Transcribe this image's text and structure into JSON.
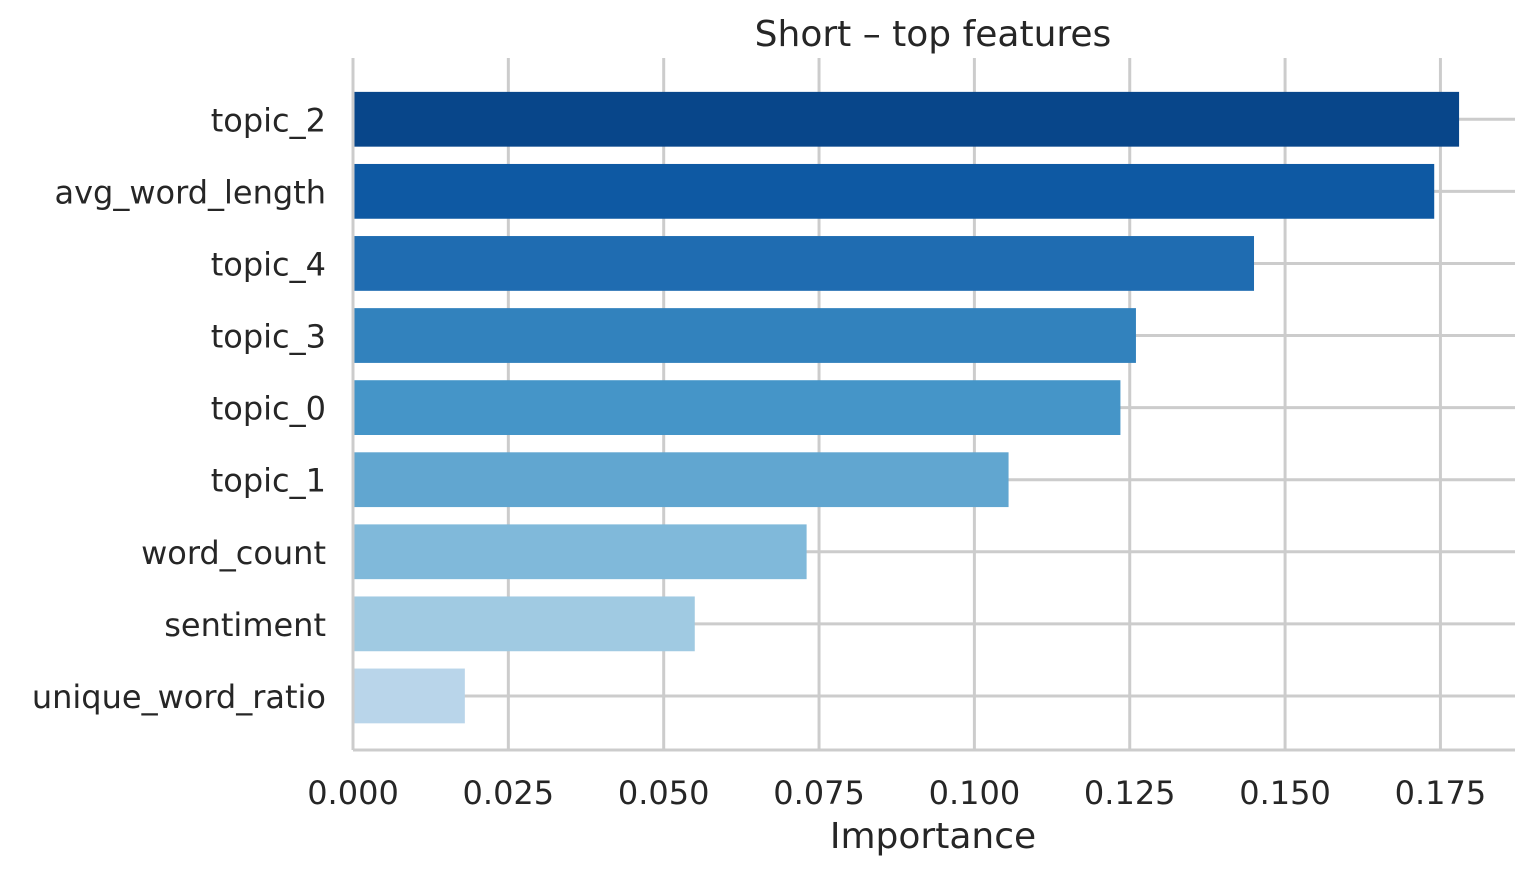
{
  "chart_data": {
    "type": "bar",
    "orientation": "horizontal",
    "title": "Short – top features",
    "xlabel": "Importance",
    "ylabel": "",
    "categories": [
      "topic_2",
      "avg_word_length",
      "topic_4",
      "topic_3",
      "topic_0",
      "topic_1",
      "word_count",
      "sentiment",
      "unique_word_ratio"
    ],
    "values": [
      0.178,
      0.174,
      0.145,
      0.126,
      0.1235,
      0.1055,
      0.073,
      0.055,
      0.018
    ],
    "colors": [
      "#08468a",
      "#0e59a3",
      "#1f6cb1",
      "#3282bd",
      "#4595c8",
      "#61a6d0",
      "#80b9da",
      "#a0cae2",
      "#b9d5ea"
    ],
    "xlim": [
      0,
      0.187
    ],
    "xticks": [
      0.0,
      0.025,
      0.05,
      0.075,
      0.1,
      0.125,
      0.15,
      0.175
    ],
    "xtick_labels": [
      "0.000",
      "0.025",
      "0.050",
      "0.075",
      "0.100",
      "0.125",
      "0.150",
      "0.175"
    ],
    "grid": true,
    "legend": "none"
  }
}
